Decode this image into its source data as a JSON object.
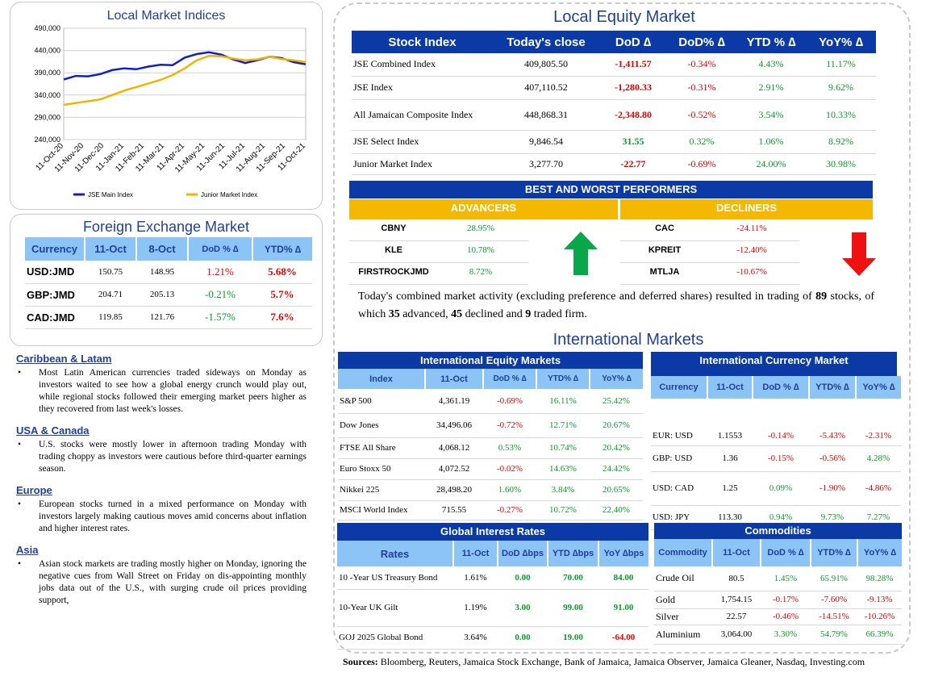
{
  "chart": {
    "title": "Local Market Indices",
    "legend": [
      {
        "name": "JSE Main Index",
        "color": "#1020c8"
      },
      {
        "name": "Junior Market Index",
        "color": "#f0b400"
      }
    ]
  },
  "chart_data": {
    "type": "line",
    "title": "Local Market Indices",
    "ylim": [
      240000,
      490000
    ],
    "y_ticks": [
      "490,000",
      "440,000",
      "390,000",
      "340,000",
      "290,000",
      "240,000"
    ],
    "x_ticks": [
      "11-Oct-20",
      "11-Nov-20",
      "11-Dec-20",
      "11-Jan-21",
      "11-Feb-21",
      "11-Mar-21",
      "11-Apr-21",
      "11-May-21",
      "11-Jun-21",
      "11-Jul-21",
      "11-Aug-21",
      "11-Sep-21",
      "11-Oct-21"
    ],
    "grid": true,
    "legend_position": "bottom",
    "series": [
      {
        "name": "JSE Main Index",
        "color": "#1020c8",
        "values": [
          375000,
          383000,
          382000,
          387000,
          396000,
          400000,
          398000,
          404000,
          408000,
          407000,
          424000,
          432000,
          436000,
          431000,
          420000,
          412000,
          418000,
          426000,
          423000,
          414000,
          409000
        ]
      },
      {
        "name": "Junior Market Index",
        "color": "#f0b400",
        "values": [
          318000,
          322000,
          326000,
          330000,
          340000,
          350000,
          358000,
          366000,
          374000,
          385000,
          400000,
          418000,
          428000,
          427000,
          422000,
          418000,
          420000,
          426000,
          421000,
          418000,
          414000
        ]
      }
    ]
  },
  "fx": {
    "title": "Foreign Exchange Market",
    "headers": [
      "Currency",
      "11-Oct",
      "8-Oct",
      "DoD % ∆",
      "YTD% ∆"
    ],
    "rows": [
      {
        "c": "USD:JMD",
        "a": "150.75",
        "b": "148.95",
        "d": "1.21%",
        "y": "5.68%",
        "dc": "neg",
        "yc": "neg"
      },
      {
        "c": "GBP:JMD",
        "a": "204.71",
        "b": "205.13",
        "d": "-0.21%",
        "y": "5.7%",
        "dc": "pos",
        "yc": "neg"
      },
      {
        "c": "CAD:JMD",
        "a": "119.85",
        "b": "121.76",
        "d": "-1.57%",
        "y": "7.6%",
        "dc": "pos",
        "yc": "neg"
      }
    ]
  },
  "news": [
    {
      "h": "Caribbean & Latam",
      "t": "Most Latin American currencies traded sideways on Monday as investors waited to see how a global energy crunch would play out, while regional stocks followed their emerging market peers higher as they recovered from last week's losses."
    },
    {
      "h": "USA & Canada",
      "t": "U.S. stocks were mostly lower in afternoon trading Monday with trading choppy as investors were cautious before third-quarter earnings season."
    },
    {
      "h": "Europe",
      "t": "European stocks turned in a mixed performance on Monday with investors largely making cautious moves amid concerns about inflation and higher interest rates."
    },
    {
      "h": "Asia",
      "t": "Asian stock markets are trading mostly higher on Monday, ignoring the negative cues from Wall Street on Friday on dis-appointing monthly jobs data out of the U.S., with surging crude oil prices providing support,"
    }
  ],
  "equity": {
    "title": "Local Equity Market",
    "headers": [
      "Stock Index",
      "Today's close",
      "DoD  ∆",
      "DoD% ∆",
      "YTD % ∆",
      "YoY% ∆"
    ],
    "rows": [
      {
        "n": "JSE Combined Index",
        "c": "409,805.50",
        "d": "-1,411.57",
        "p": "-0.34%",
        "y": "4.43%",
        "o": "11.17%",
        "dc": "neg"
      },
      {
        "n": "JSE Index",
        "c": "407,110.52",
        "d": "-1,280.33",
        "p": "-0.31%",
        "y": "2.91%",
        "o": "9.62%",
        "dc": "neg"
      },
      {
        "n": "All Jamaican Composite Index",
        "c": "448,868.31",
        "d": "-2,348.80",
        "p": "-0.52%",
        "y": "3.54%",
        "o": "10.33%",
        "dc": "neg"
      },
      {
        "n": "JSE Select Index",
        "c": "9,846.54",
        "d": "31.55",
        "p": "0.32%",
        "y": "1.06%",
        "o": "8.92%",
        "dc": "pos"
      },
      {
        "n": "Junior Market Index",
        "c": "3,277.70",
        "d": "-22.77",
        "p": "-0.69%",
        "y": "24.00%",
        "o": "30.98%",
        "dc": "neg"
      }
    ]
  },
  "performers": {
    "title": "BEST AND WORST PERFORMERS",
    "adv_label": "ADVANCERS",
    "dec_label": "DECLINERS",
    "advancers": [
      {
        "n": "CBNY",
        "v": "28.95%"
      },
      {
        "n": "KLE",
        "v": "10.78%"
      },
      {
        "n": "FIRSTROCKJMD",
        "v": "8.72%"
      }
    ],
    "decliners": [
      {
        "n": "CAC",
        "v": "-24.11%"
      },
      {
        "n": "KPREIT",
        "v": "-12.40%"
      },
      {
        "n": "MTLJA",
        "v": "-10.67%"
      }
    ]
  },
  "summary": {
    "pre": "Today's combined market activity (excluding preference and deferred shares) resulted in trading of ",
    "total": "89",
    "mid1": " stocks, of which ",
    "adv": "35",
    "mid2": " advanced, ",
    "dec": "45",
    "mid3": " declined and ",
    "firm": "9",
    "post": " traded firm."
  },
  "intl": {
    "title": "International Markets",
    "equity": {
      "title": "International Equity Markets",
      "headers": [
        "Index",
        "11-Oct",
        "DoD % ∆",
        "YTD% ∆",
        "YoY% ∆"
      ],
      "rows": [
        {
          "n": "S&P 500",
          "a": "4,361.19",
          "d": "-0.69%",
          "y": "16.11%",
          "o": "25.42%",
          "dc": "neg"
        },
        {
          "n": "Dow Jones",
          "a": "34,496.06",
          "d": "-0.72%",
          "y": "12.71%",
          "o": "20.67%",
          "dc": "neg"
        },
        {
          "n": "FTSE All Share",
          "a": "4,068.12",
          "d": "0.53%",
          "y": "10.74%",
          "o": "20.42%",
          "dc": "pos"
        },
        {
          "n": "Euro Stoxx 50",
          "a": "4,072.52",
          "d": "-0.02%",
          "y": "14.63%",
          "o": "24.42%",
          "dc": "neg"
        },
        {
          "n": "Nikkei 225",
          "a": "28,498.20",
          "d": "1.60%",
          "y": "3.84%",
          "o": "20.65%",
          "dc": "pos"
        },
        {
          "n": "MSCI World Index",
          "a": "715.55",
          "d": "-0.27%",
          "y": "10.72%",
          "o": "22.40%",
          "dc": "neg"
        }
      ]
    },
    "currency": {
      "title": "International Currency Market",
      "headers": [
        "Currency",
        "11-Oct",
        "DoD % ∆",
        "YTD% ∆",
        "YoY% ∆"
      ],
      "rows": [
        {
          "n": "EUR: USD",
          "a": "1.1553",
          "d": "-0.14%",
          "y": "-5.43%",
          "o": "-2.31%",
          "dc": "neg",
          "yc": "neg",
          "oc": "neg"
        },
        {
          "n": "GBP: USD",
          "a": "1.36",
          "d": "-0.15%",
          "y": "-0.56%",
          "o": "4.28%",
          "dc": "neg",
          "yc": "neg",
          "oc": "pos"
        },
        {
          "n": "USD: CAD",
          "a": "1.25",
          "d": "0.09%",
          "y": "-1.90%",
          "o": "-4.86%",
          "dc": "pos",
          "yc": "neg",
          "oc": "neg"
        },
        {
          "n": "USD: JPY",
          "a": "113.30",
          "d": "0.94%",
          "y": "9.73%",
          "o": "7.27%",
          "dc": "pos",
          "yc": "pos",
          "oc": "pos"
        }
      ]
    },
    "rates": {
      "title": "Global Interest Rates",
      "headers": [
        "Rates",
        "11-Oct",
        "DoD ∆bps",
        "YTD ∆bps",
        "YoY ∆bps"
      ],
      "rows": [
        {
          "n": "10 -Year US Treasury Bond",
          "a": "1.61%",
          "d": "0.00",
          "y": "70.00",
          "o": "84.00",
          "oc": "pos"
        },
        {
          "n": "10-Year UK Gilt",
          "a": "1.19%",
          "d": "3.00",
          "y": "99.00",
          "o": "91.00",
          "oc": "pos"
        },
        {
          "n": "GOJ 2025 Global Bond",
          "a": "3.64%",
          "d": "0.00",
          "y": "19.00",
          "o": "-64.00",
          "oc": "neg"
        }
      ]
    },
    "commodities": {
      "title": "Commodities",
      "headers": [
        "Commodity",
        "11-Oct",
        "DoD % ∆",
        "YTD% ∆",
        "YoY% ∆"
      ],
      "rows": [
        {
          "n": "Crude Oil",
          "a": "80.5",
          "d": "1.45%",
          "y": "65.91%",
          "o": "98.28%",
          "dc": "pos",
          "yc": "pos",
          "oc": "pos"
        },
        {
          "n": "Gold",
          "a": "1,754.15",
          "d": "-0.17%",
          "y": "-7.60%",
          "o": "-9.13%",
          "dc": "neg",
          "yc": "neg",
          "oc": "neg"
        },
        {
          "n": "Silver",
          "a": "22.57",
          "d": "-0.46%",
          "y": "-14.51%",
          "o": "-10.26%",
          "dc": "neg",
          "yc": "neg",
          "oc": "neg"
        },
        {
          "n": "Aluminium",
          "a": "3,064.00",
          "d": "3.30%",
          "y": "54.79%",
          "o": "66.39%",
          "dc": "pos",
          "yc": "pos",
          "oc": "pos"
        }
      ]
    }
  },
  "sources": {
    "label": "Sources:",
    "text": " Bloomberg, Reuters, Jamaica Stock Exchange, Bank of Jamaica, Jamaica Observer, Jamaica Gleaner, Nasdaq, Investing.com"
  }
}
